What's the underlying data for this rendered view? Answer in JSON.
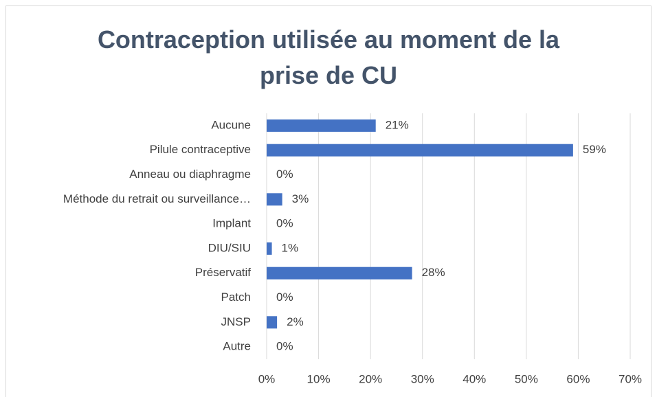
{
  "chart_data": {
    "type": "bar",
    "orientation": "horizontal",
    "title": "Contraception utilisée au moment de la prise de CU",
    "categories": [
      "Aucune",
      "Pilule contraceptive",
      "Anneau ou diaphragme",
      "Méthode du retrait ou surveillance…",
      "Implant",
      "DIU/SIU",
      "Préservatif",
      "Patch",
      "JNSP",
      "Autre"
    ],
    "values": [
      21,
      59,
      0,
      3,
      0,
      1,
      28,
      0,
      2,
      0
    ],
    "value_labels": [
      "21%",
      "59%",
      "0%",
      "3%",
      "0%",
      "1%",
      "28%",
      "0%",
      "2%",
      "0%"
    ],
    "color": "#4472c4",
    "xlim": [
      0,
      70
    ],
    "xticks": [
      {
        "value": 0,
        "label": "0%"
      },
      {
        "value": 10,
        "label": "10%"
      },
      {
        "value": 20,
        "label": "20%"
      },
      {
        "value": 30,
        "label": "30%"
      },
      {
        "value": 40,
        "label": "40%"
      },
      {
        "value": 50,
        "label": "50%"
      },
      {
        "value": 60,
        "label": "60%"
      },
      {
        "value": 70,
        "label": "70%"
      }
    ],
    "grid": true
  }
}
